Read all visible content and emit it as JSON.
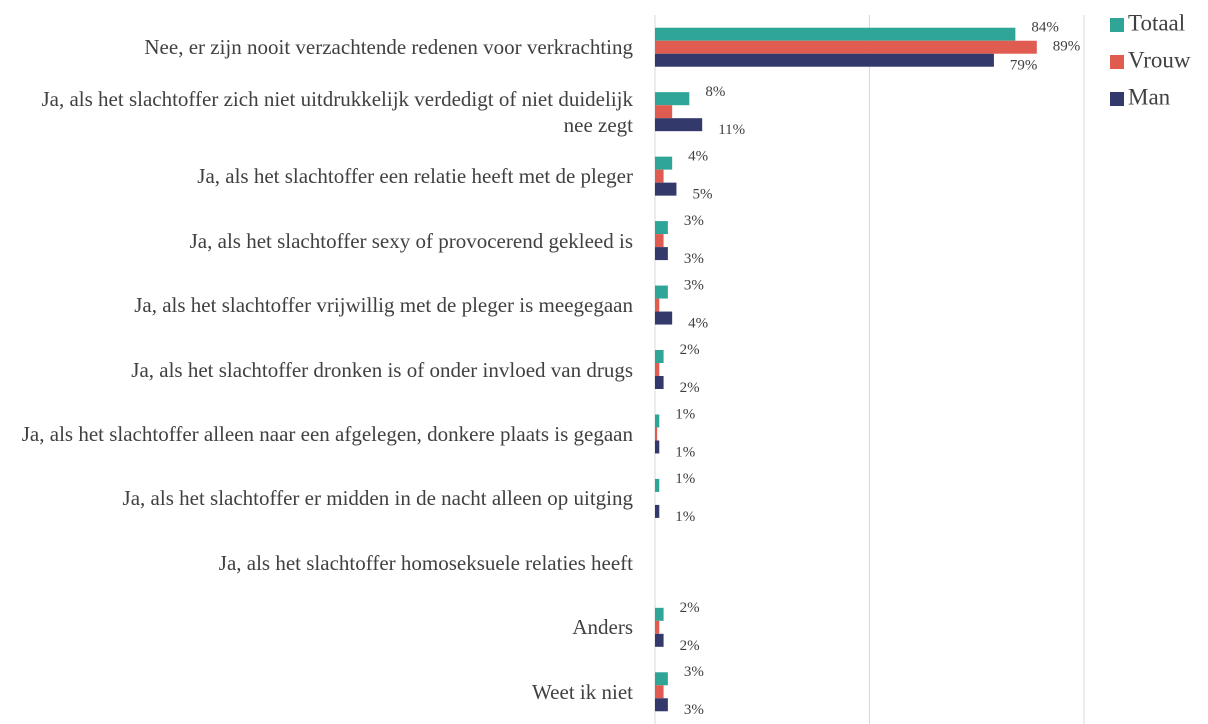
{
  "chart_data": {
    "type": "bar",
    "orientation": "horizontal",
    "categories": [
      "Nee, er zijn nooit verzachtende redenen voor verkrachting",
      "Ja, als het slachtoffer zich niet uitdrukkelijk verdedigt of niet duidelijk nee zegt",
      "Ja, als het slachtoffer een relatie heeft met de pleger",
      "Ja, als het slachtoffer sexy of provocerend gekleed is",
      "Ja, als het slachtoffer vrijwillig met de pleger is meegegaan",
      "Ja, als het slachtoffer dronken is of onder invloed van drugs",
      "Ja, als het slachtoffer alleen naar een afgelegen, donkere plaats is gegaan",
      "Ja, als het slachtoffer er midden in de nacht alleen op uitging",
      "Ja, als het slachtoffer homoseksuele relaties heeft",
      "Anders",
      "Weet ik niet"
    ],
    "series": [
      {
        "name": "Totaal",
        "color": "#2ea597",
        "values": [
          84,
          8,
          4,
          3,
          3,
          2,
          1,
          1,
          0,
          2,
          3
        ],
        "value_labels": [
          "84%",
          "8%",
          "4%",
          "3%",
          "3%",
          "2%",
          "1%",
          "1%",
          null,
          "2%",
          "3%"
        ]
      },
      {
        "name": "Vrouw",
        "color": "#e05c50",
        "values": [
          89,
          4,
          2,
          2,
          1,
          1,
          0.5,
          0,
          0,
          1,
          2
        ],
        "value_labels": [
          "89%",
          null,
          null,
          null,
          null,
          null,
          null,
          null,
          null,
          null,
          null
        ]
      },
      {
        "name": "Man",
        "color": "#333a6b",
        "values": [
          79,
          11,
          5,
          3,
          4,
          2,
          1,
          1,
          0,
          2,
          3
        ],
        "value_labels": [
          "79%",
          "11%",
          "5%",
          "3%",
          "4%",
          "2%",
          "1%",
          "1%",
          null,
          "2%",
          "3%"
        ]
      }
    ],
    "xlim": [
      0,
      100
    ],
    "xticks": [
      0,
      50,
      100
    ],
    "grid": true,
    "legend": "top-right"
  }
}
